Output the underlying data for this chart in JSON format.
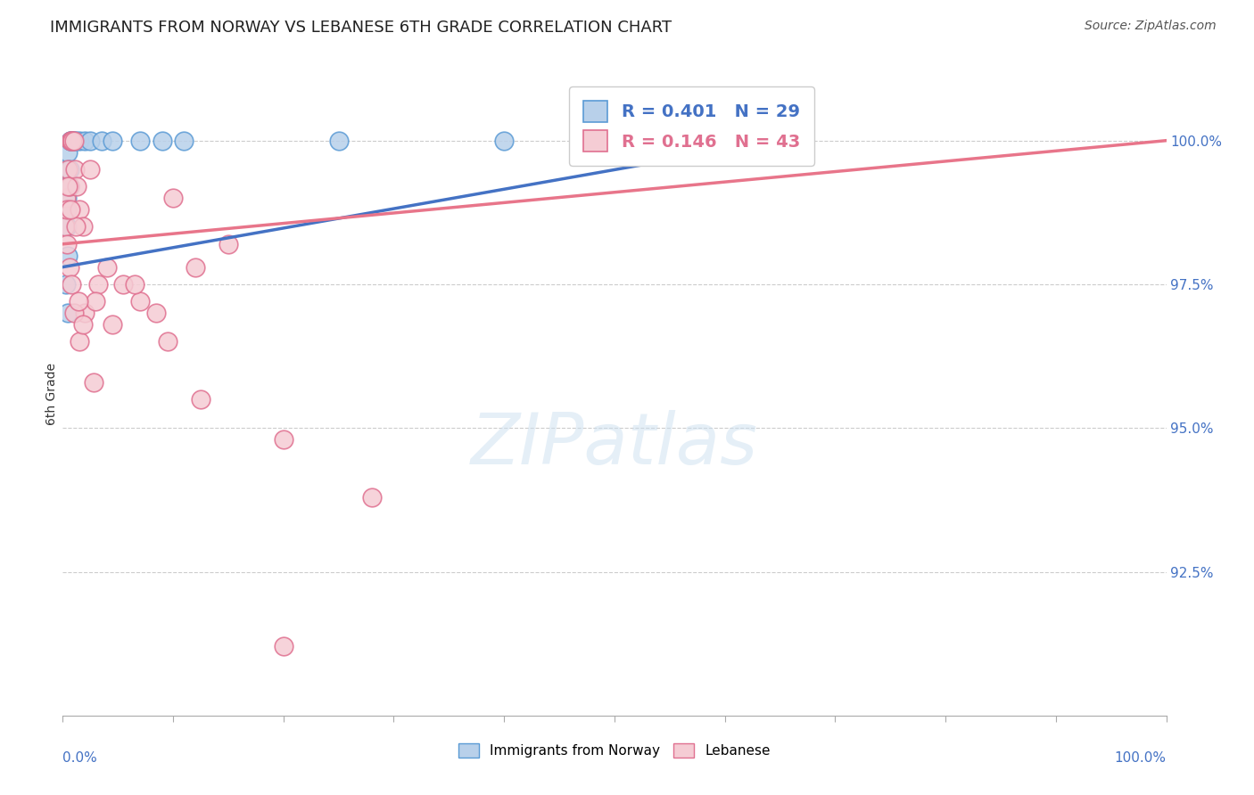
{
  "title": "IMMIGRANTS FROM NORWAY VS LEBANESE 6TH GRADE CORRELATION CHART",
  "source": "Source: ZipAtlas.com",
  "ylabel": "6th Grade",
  "ylabel_right_ticks": [
    100.0,
    97.5,
    95.0,
    92.5
  ],
  "xmin": 0.0,
  "xmax": 100.0,
  "ymin": 90.0,
  "ymax": 101.2,
  "norway_R": 0.401,
  "norway_N": 29,
  "lebanese_R": 0.146,
  "lebanese_N": 43,
  "norway_color": "#b8d0ea",
  "norway_edge_color": "#5b9bd5",
  "lebanese_color": "#f5ccd4",
  "lebanese_edge_color": "#e07090",
  "norway_line_color": "#4472c4",
  "lebanese_line_color": "#e8758a",
  "legend_text_color_blue": "#4472c4",
  "legend_text_color_pink": "#e07090",
  "norway_x": [
    0.2,
    0.3,
    0.3,
    0.4,
    0.4,
    0.5,
    0.5,
    0.6,
    0.6,
    0.7,
    0.7,
    0.8,
    0.9,
    1.0,
    1.2,
    1.5,
    2.0,
    2.5,
    3.5,
    4.5,
    7.0,
    9.0,
    11.0,
    25.0,
    40.0,
    55.0,
    65.0,
    0.3,
    0.5
  ],
  "norway_y": [
    99.2,
    99.5,
    98.8,
    99.0,
    98.5,
    98.0,
    99.8,
    99.5,
    99.2,
    100.0,
    100.0,
    100.0,
    100.0,
    100.0,
    100.0,
    100.0,
    100.0,
    100.0,
    100.0,
    100.0,
    100.0,
    100.0,
    100.0,
    100.0,
    100.0,
    100.0,
    100.0,
    97.5,
    97.0
  ],
  "lebanese_x": [
    0.2,
    0.3,
    0.4,
    0.5,
    0.6,
    0.7,
    0.8,
    0.9,
    1.0,
    1.1,
    1.3,
    1.5,
    1.8,
    2.5,
    3.2,
    4.0,
    5.5,
    7.0,
    8.5,
    10.0,
    12.0,
    15.0,
    1.5,
    2.0,
    3.0,
    4.5,
    6.5,
    9.5,
    12.5,
    65.0,
    0.4,
    0.6,
    0.8,
    1.0,
    1.2,
    1.8,
    2.8,
    0.5,
    0.7,
    1.4,
    20.0,
    28.0,
    20.0
  ],
  "lebanese_y": [
    98.5,
    99.0,
    98.8,
    99.5,
    99.2,
    100.0,
    100.0,
    100.0,
    100.0,
    99.5,
    99.2,
    98.8,
    98.5,
    99.5,
    97.5,
    97.8,
    97.5,
    97.2,
    97.0,
    99.0,
    97.8,
    98.2,
    96.5,
    97.0,
    97.2,
    96.8,
    97.5,
    96.5,
    95.5,
    100.0,
    98.2,
    97.8,
    97.5,
    97.0,
    98.5,
    96.8,
    95.8,
    99.2,
    98.8,
    97.2,
    94.8,
    93.8,
    91.2
  ],
  "norway_line_x0": 0.0,
  "norway_line_y0": 97.8,
  "norway_line_x1": 65.0,
  "norway_line_y1": 100.0,
  "lebanese_line_x0": 0.0,
  "lebanese_line_y0": 98.2,
  "lebanese_line_x1": 100.0,
  "lebanese_line_y1": 100.0,
  "watermark_text": "ZIPatlas",
  "background_color": "#ffffff",
  "grid_color": "#cccccc",
  "tick_color": "#4472c4"
}
